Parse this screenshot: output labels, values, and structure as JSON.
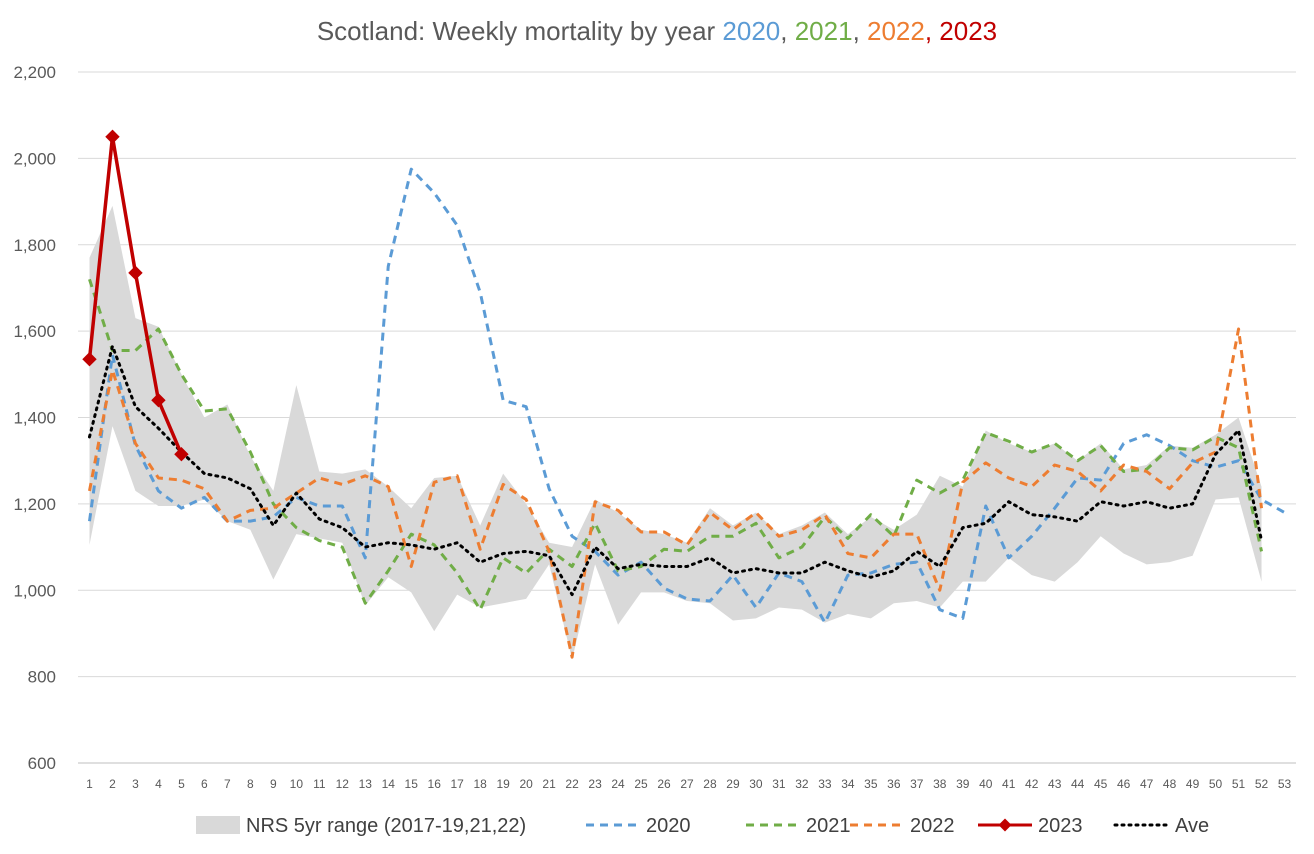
{
  "chart_data": {
    "type": "line",
    "title": {
      "prefix": "Scotland: Weekly mortality by year ",
      "parts": [
        {
          "text": "2020",
          "color": "#5b9bd5"
        },
        {
          "text": ", ",
          "color": "#595959"
        },
        {
          "text": "2021",
          "color": "#70ad47"
        },
        {
          "text": ", ",
          "color": "#595959"
        },
        {
          "text": "2022",
          "color": "#ed7d31"
        },
        {
          "text": ", 2023",
          "color": "#c00000"
        }
      ]
    },
    "xlabel": "",
    "ylabel": "",
    "ylim": [
      600,
      2200
    ],
    "yticks": [
      "600",
      "800",
      "1,000",
      "1,200",
      "1,400",
      "1,600",
      "1,800",
      "2,000",
      "2,200"
    ],
    "ytick_values": [
      600,
      800,
      1000,
      1200,
      1400,
      1600,
      1800,
      2000,
      2200
    ],
    "weeks": [
      1,
      2,
      3,
      4,
      5,
      6,
      7,
      8,
      9,
      10,
      11,
      12,
      13,
      14,
      15,
      16,
      17,
      18,
      19,
      20,
      21,
      22,
      23,
      24,
      25,
      26,
      27,
      28,
      29,
      30,
      31,
      32,
      33,
      34,
      35,
      36,
      37,
      38,
      39,
      40,
      41,
      42,
      43,
      44,
      45,
      46,
      47,
      48,
      49,
      50,
      51,
      52,
      53
    ],
    "range": {
      "name": "NRS 5yr range (2017-19,21,22)",
      "color": "#d9d9d9",
      "low": [
        1105,
        1380,
        1230,
        1195,
        1195,
        1210,
        1160,
        1140,
        1025,
        1130,
        1120,
        1110,
        965,
        1030,
        995,
        905,
        990,
        960,
        970,
        980,
        1060,
        840,
        1060,
        920,
        995,
        995,
        975,
        970,
        930,
        935,
        960,
        955,
        925,
        945,
        935,
        970,
        975,
        960,
        1020,
        1020,
        1075,
        1035,
        1020,
        1065,
        1125,
        1085,
        1060,
        1065,
        1080,
        1210,
        1215,
        1020
      ],
      "high": [
        1770,
        1890,
        1630,
        1610,
        1500,
        1400,
        1430,
        1310,
        1230,
        1475,
        1275,
        1270,
        1280,
        1240,
        1190,
        1260,
        1265,
        1150,
        1270,
        1200,
        1110,
        1100,
        1210,
        1180,
        1140,
        1130,
        1110,
        1190,
        1150,
        1180,
        1130,
        1150,
        1180,
        1130,
        1170,
        1140,
        1175,
        1265,
        1240,
        1370,
        1340,
        1320,
        1340,
        1300,
        1340,
        1280,
        1290,
        1335,
        1330,
        1360,
        1400,
        1240
      ]
    },
    "series": [
      {
        "name": "2020",
        "color": "#5b9bd5",
        "dash": "8 6",
        "values": [
          1160,
          1545,
          1335,
          1230,
          1190,
          1215,
          1160,
          1160,
          1170,
          1215,
          1195,
          1195,
          1075,
          1750,
          1975,
          1920,
          1845,
          1690,
          1440,
          1425,
          1235,
          1125,
          1090,
          1035,
          1065,
          1005,
          980,
          975,
          1035,
          960,
          1040,
          1020,
          925,
          1035,
          1040,
          1060,
          1065,
          955,
          935,
          1195,
          1075,
          1125,
          1190,
          1260,
          1255,
          1340,
          1360,
          1335,
          1300,
          1285,
          1300,
          1210,
          1180
        ]
      },
      {
        "name": "2021",
        "color": "#70ad47",
        "dash": "8 6",
        "values": [
          1720,
          1555,
          1555,
          1605,
          1500,
          1415,
          1420,
          1320,
          1200,
          1145,
          1115,
          1100,
          970,
          1045,
          1130,
          1105,
          1040,
          955,
          1075,
          1040,
          1095,
          1055,
          1155,
          1045,
          1055,
          1095,
          1090,
          1125,
          1125,
          1155,
          1075,
          1100,
          1170,
          1120,
          1175,
          1125,
          1255,
          1225,
          1255,
          1365,
          1345,
          1320,
          1340,
          1300,
          1335,
          1275,
          1280,
          1330,
          1325,
          1355,
          1330,
          1090
        ]
      },
      {
        "name": "2022",
        "color": "#ed7d31",
        "dash": "8 6",
        "values": [
          1230,
          1510,
          1340,
          1260,
          1255,
          1235,
          1160,
          1185,
          1190,
          1225,
          1260,
          1245,
          1265,
          1240,
          1055,
          1250,
          1265,
          1095,
          1245,
          1210,
          1090,
          845,
          1205,
          1185,
          1135,
          1135,
          1105,
          1180,
          1140,
          1180,
          1125,
          1140,
          1175,
          1085,
          1075,
          1130,
          1130,
          1000,
          1250,
          1295,
          1260,
          1240,
          1290,
          1275,
          1230,
          1290,
          1275,
          1235,
          1295,
          1320,
          1605,
          1190
        ]
      },
      {
        "name": "2023",
        "color": "#c00000",
        "dash": "",
        "markers": true,
        "values": [
          1535,
          2050,
          1735,
          1440,
          1315
        ]
      },
      {
        "name": "Ave",
        "color": "#000000",
        "dash": "2 5",
        "values": [
          1355,
          1565,
          1425,
          1375,
          1320,
          1270,
          1260,
          1235,
          1150,
          1225,
          1165,
          1145,
          1100,
          1110,
          1105,
          1095,
          1110,
          1065,
          1085,
          1090,
          1080,
          990,
          1100,
          1050,
          1060,
          1055,
          1055,
          1075,
          1040,
          1050,
          1040,
          1040,
          1065,
          1045,
          1030,
          1045,
          1090,
          1055,
          1145,
          1155,
          1205,
          1175,
          1170,
          1160,
          1205,
          1195,
          1205,
          1190,
          1200,
          1315,
          1370,
          1115
        ]
      }
    ],
    "legend_position": "bottom"
  }
}
